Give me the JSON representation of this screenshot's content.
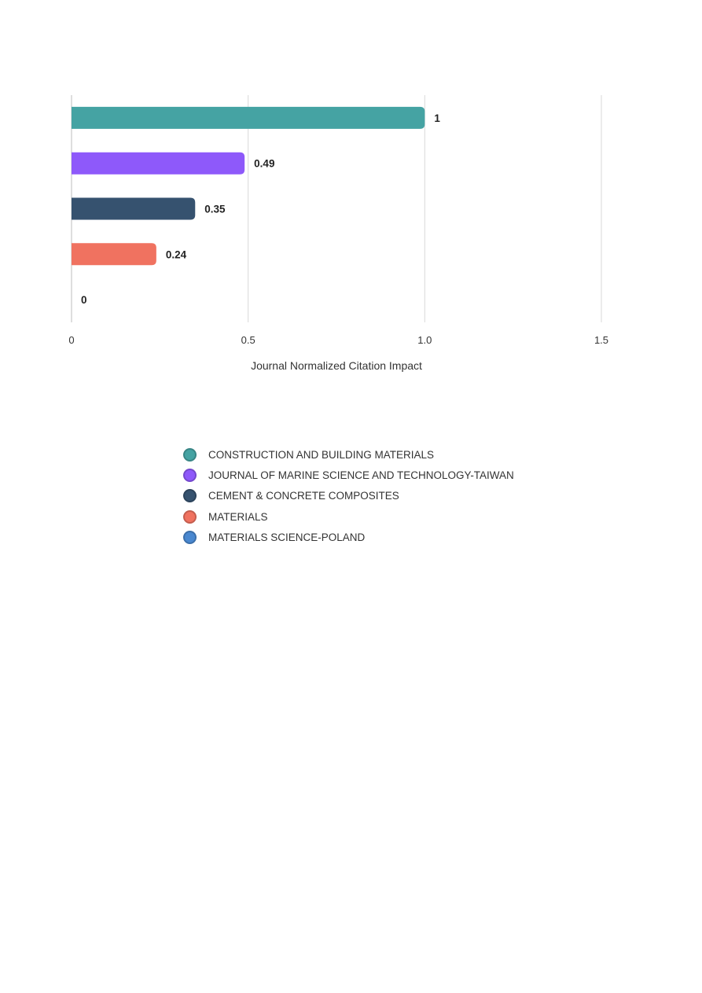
{
  "chart_data": {
    "type": "bar",
    "orientation": "horizontal",
    "xlabel": "Journal Normalized Citation Impact",
    "xlim": [
      0,
      1.5
    ],
    "x_ticks": [
      "0",
      "0.5",
      "1.0",
      "1.5"
    ],
    "grid": true,
    "legend_placement": "bottom-center",
    "series": [
      {
        "name": "CONSTRUCTION AND BUILDING MATERIALS",
        "value": 1,
        "value_label": "1",
        "color": "#45a3a3"
      },
      {
        "name": "JOURNAL OF MARINE SCIENCE AND TECHNOLOGY-TAIWAN",
        "value": 0.49,
        "value_label": "0.49",
        "color": "#8e59fa"
      },
      {
        "name": "CEMENT & CONCRETE COMPOSITES",
        "value": 0.35,
        "value_label": "0.35",
        "color": "#36526f"
      },
      {
        "name": "MATERIALS",
        "value": 0.24,
        "value_label": "0.24",
        "color": "#f07260"
      },
      {
        "name": "MATERIALS SCIENCE-POLAND",
        "value": 0,
        "value_label": "0",
        "color": "#4a88d0"
      }
    ]
  }
}
